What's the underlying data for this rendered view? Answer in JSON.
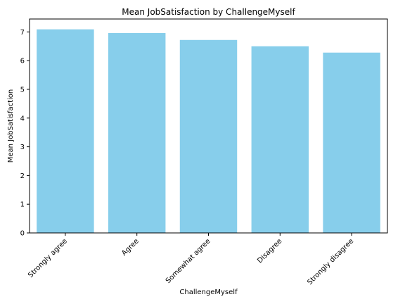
{
  "chart_data": {
    "type": "bar",
    "title": "Mean JobSatisfaction by ChallengeMyself",
    "xlabel": "ChallengeMyself",
    "ylabel": "Mean JobSatisfaction",
    "categories": [
      "Strongly agree",
      "Agree",
      "Somewhat agree",
      "Disagree",
      "Strongly disagree"
    ],
    "values": [
      7.09,
      6.96,
      6.72,
      6.5,
      6.28
    ],
    "ylim": [
      0,
      7.45
    ],
    "yticks": [
      0,
      1,
      2,
      3,
      4,
      5,
      6,
      7
    ],
    "bar_color": "#87CEEB",
    "grid": false,
    "legend": "none"
  }
}
